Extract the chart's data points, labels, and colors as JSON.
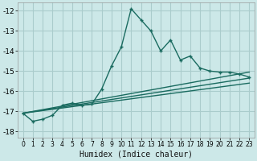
{
  "title": "",
  "xlabel": "Humidex (Indice chaleur)",
  "background_color": "#cce8e8",
  "grid_color": "#aacccc",
  "line_color": "#1a6b60",
  "xlim": [
    -0.5,
    23.5
  ],
  "ylim": [
    -18.3,
    -11.6
  ],
  "xticks": [
    0,
    1,
    2,
    3,
    4,
    5,
    6,
    7,
    8,
    9,
    10,
    11,
    12,
    13,
    14,
    15,
    16,
    17,
    18,
    19,
    20,
    21,
    22,
    23
  ],
  "yticks": [
    -18,
    -17,
    -16,
    -15,
    -14,
    -13,
    -12
  ],
  "series1_x": [
    0,
    1,
    2,
    3,
    4,
    5,
    6,
    7,
    8,
    9,
    10,
    11,
    12,
    13,
    14,
    15,
    16,
    17,
    18,
    19,
    20,
    21,
    22,
    23
  ],
  "series1_y": [
    -17.1,
    -17.5,
    -17.4,
    -17.2,
    -16.7,
    -16.6,
    -16.7,
    -16.65,
    -15.9,
    -14.75,
    -13.8,
    -11.9,
    -12.45,
    -13.0,
    -14.0,
    -13.45,
    -14.45,
    -14.25,
    -14.85,
    -15.0,
    -15.05,
    -15.05,
    -15.15,
    -15.3
  ],
  "series2_x": [
    0,
    23
  ],
  "series2_y": [
    -17.1,
    -15.05
  ],
  "series3_x": [
    0,
    23
  ],
  "series3_y": [
    -17.1,
    -15.35
  ],
  "series4_x": [
    0,
    23
  ],
  "series4_y": [
    -17.1,
    -15.6
  ]
}
